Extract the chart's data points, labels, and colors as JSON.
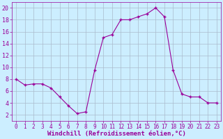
{
  "x": [
    0,
    1,
    2,
    3,
    4,
    5,
    6,
    7,
    8,
    9,
    10,
    11,
    12,
    13,
    14,
    15,
    16,
    17,
    18,
    19,
    20,
    21,
    22,
    23
  ],
  "y": [
    8,
    7,
    7.2,
    7.2,
    6.5,
    5,
    3.5,
    2.2,
    2.5,
    9.5,
    15,
    15.5,
    18,
    18,
    18.5,
    19,
    20,
    18.5,
    9.5,
    5.5,
    5,
    5,
    4,
    4
  ],
  "line_color": "#990099",
  "marker": "+",
  "marker_size": 3.5,
  "bg_color": "#cceeff",
  "grid_color": "#aabbcc",
  "xlabel": "Windchill (Refroidissement éolien,°C)",
  "xlabel_fontsize": 6.5,
  "xlabel_color": "#990099",
  "ylabel_ticks": [
    2,
    4,
    6,
    8,
    10,
    12,
    14,
    16,
    18,
    20
  ],
  "xtick_labels": [
    "0",
    "1",
    "2",
    "3",
    "4",
    "5",
    "6",
    "7",
    "8",
    "9",
    "10",
    "11",
    "12",
    "13",
    "14",
    "15",
    "16",
    "17",
    "18",
    "19",
    "20",
    "21",
    "22",
    "23"
  ],
  "xtick_fontsize": 5.5,
  "ytick_fontsize": 6.0,
  "tick_color": "#990099",
  "xlim": [
    -0.5,
    23.5
  ],
  "ylim": [
    1.0,
    21.0
  ]
}
